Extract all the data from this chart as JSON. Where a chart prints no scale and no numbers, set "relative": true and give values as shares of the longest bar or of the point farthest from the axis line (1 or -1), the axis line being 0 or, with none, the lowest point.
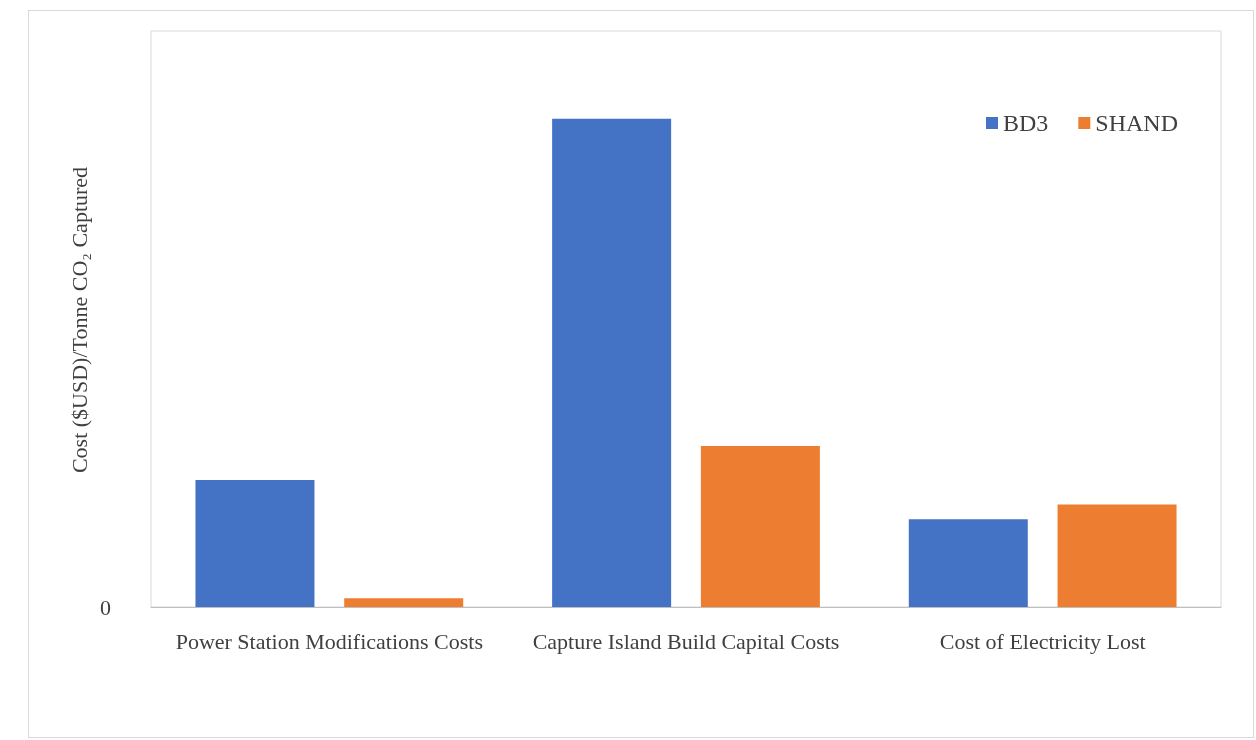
{
  "chart_data": {
    "type": "bar",
    "ylabel": "Cost ($USD)/Tonne CO₂ Captured",
    "relative": true,
    "categories": [
      "Power Station Modifications Costs",
      "Capture Island Build Capital Costs",
      "Cost of Electricity Lost"
    ],
    "series": [
      {
        "name": "BD3",
        "color": "#4472c4",
        "values": [
          0.26,
          1,
          0.18
        ]
      },
      {
        "name": "SHAND",
        "color": "#ed7d31",
        "values": [
          0.018,
          0.33,
          0.21
        ]
      }
    ],
    "annotations": [
      "0"
    ],
    "legend": "top right",
    "grid": false
  }
}
